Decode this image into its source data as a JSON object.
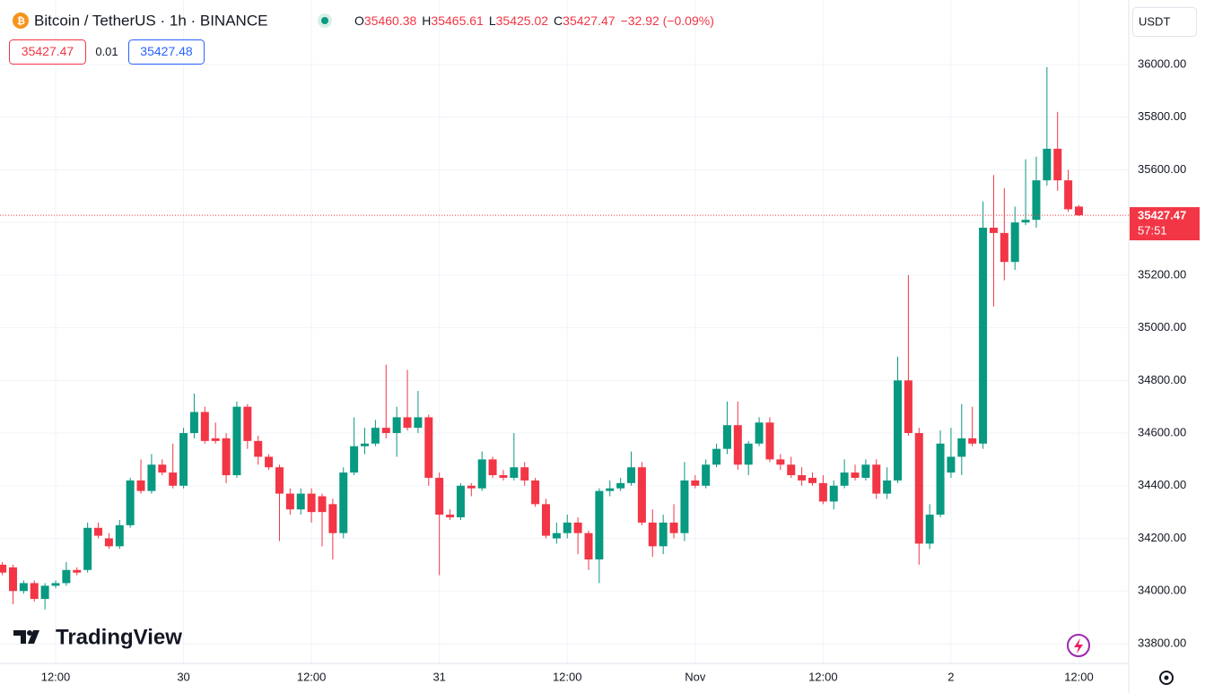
{
  "chart_data": {
    "type": "candlestick",
    "title": "Bitcoin / TetherUS · 1h · BINANCE",
    "ohlc_letters": [
      "O",
      "H",
      "L",
      "C"
    ],
    "change_label": "−32.92 (−0.09%)",
    "bid": "35427.47",
    "spread": "0.01",
    "ask": "35427.48",
    "currency": "USDT",
    "countdown": "57:51",
    "brand": "TradingView",
    "up_color": "#089981",
    "down_color": "#f23645",
    "grid": true,
    "ylim": [
      33725,
      36245
    ],
    "yticks": [
      {
        "value": 33800,
        "label": "33800.00"
      },
      {
        "value": 34000,
        "label": "34000.00"
      },
      {
        "value": 34200,
        "label": "34200.00"
      },
      {
        "value": 34400,
        "label": "34400.00"
      },
      {
        "value": 34600,
        "label": "34600.00"
      },
      {
        "value": 34800,
        "label": "34800.00"
      },
      {
        "value": 35000,
        "label": "35000.00"
      },
      {
        "value": 35200,
        "label": "35200.00"
      },
      {
        "value": 35400,
        "label": "35400.00"
      },
      {
        "value": 35600,
        "label": "35600.00"
      },
      {
        "value": 35800,
        "label": "35800.00"
      },
      {
        "value": 36000,
        "label": "36000.00"
      }
    ],
    "categories": [
      null,
      null,
      null,
      null,
      null,
      "12:00",
      null,
      null,
      null,
      null,
      null,
      null,
      null,
      null,
      null,
      null,
      null,
      "30",
      null,
      null,
      null,
      null,
      null,
      null,
      null,
      null,
      null,
      null,
      null,
      "12:00",
      null,
      null,
      null,
      null,
      null,
      null,
      null,
      null,
      null,
      null,
      null,
      "31",
      null,
      null,
      null,
      null,
      null,
      null,
      null,
      null,
      null,
      null,
      null,
      "12:00",
      null,
      null,
      null,
      null,
      null,
      null,
      null,
      null,
      null,
      null,
      null,
      "Nov",
      null,
      null,
      null,
      null,
      null,
      null,
      null,
      null,
      null,
      null,
      null,
      "12:00",
      null,
      null,
      null,
      null,
      null,
      null,
      null,
      null,
      null,
      null,
      null,
      "2",
      null,
      null,
      null,
      null,
      null,
      null,
      null,
      null,
      null,
      null,
      null,
      "12:00"
    ],
    "ohlc": [
      [
        34100,
        34110,
        34060,
        34070
      ],
      [
        34090,
        34100,
        33950,
        34000
      ],
      [
        34000,
        34040,
        33990,
        34030
      ],
      [
        34030,
        34040,
        33960,
        33970
      ],
      [
        33970,
        34030,
        33930,
        34020
      ],
      [
        34020,
        34040,
        34010,
        34030
      ],
      [
        34030,
        34110,
        34020,
        34080
      ],
      [
        34080,
        34090,
        34060,
        34070
      ],
      [
        34080,
        34260,
        34070,
        34240
      ],
      [
        34240,
        34260,
        34200,
        34210
      ],
      [
        34200,
        34220,
        34160,
        34170
      ],
      [
        34170,
        34270,
        34160,
        34250
      ],
      [
        34250,
        34430,
        34240,
        34420
      ],
      [
        34420,
        34500,
        34370,
        34380
      ],
      [
        34380,
        34520,
        34370,
        34480
      ],
      [
        34480,
        34500,
        34440,
        34450
      ],
      [
        34450,
        34560,
        34390,
        34400
      ],
      [
        34400,
        34620,
        34390,
        34600
      ],
      [
        34600,
        34750,
        34580,
        34680
      ],
      [
        34680,
        34700,
        34560,
        34570
      ],
      [
        34580,
        34640,
        34560,
        34570
      ],
      [
        34580,
        34600,
        34410,
        34440
      ],
      [
        34440,
        34720,
        34430,
        34700
      ],
      [
        34700,
        34710,
        34540,
        34570
      ],
      [
        34570,
        34590,
        34480,
        34510
      ],
      [
        34510,
        34520,
        34460,
        34470
      ],
      [
        34470,
        34480,
        34190,
        34370
      ],
      [
        34370,
        34390,
        34290,
        34310
      ],
      [
        34310,
        34390,
        34290,
        34370
      ],
      [
        34370,
        34390,
        34260,
        34300
      ],
      [
        34360,
        34370,
        34170,
        34300
      ],
      [
        34330,
        34350,
        34120,
        34220
      ],
      [
        34220,
        34470,
        34200,
        34450
      ],
      [
        34450,
        34660,
        34440,
        34550
      ],
      [
        34550,
        34620,
        34520,
        34560
      ],
      [
        34560,
        34650,
        34550,
        34620
      ],
      [
        34620,
        34860,
        34580,
        34600
      ],
      [
        34600,
        34700,
        34510,
        34660
      ],
      [
        34660,
        34840,
        34610,
        34620
      ],
      [
        34620,
        34760,
        34600,
        34660
      ],
      [
        34660,
        34670,
        34400,
        34430
      ],
      [
        34430,
        34450,
        34060,
        34290
      ],
      [
        34290,
        34310,
        34270,
        34280
      ],
      [
        34280,
        34410,
        34270,
        34400
      ],
      [
        34400,
        34410,
        34360,
        34390
      ],
      [
        34390,
        34530,
        34380,
        34500
      ],
      [
        34500,
        34510,
        34430,
        34440
      ],
      [
        34440,
        34460,
        34420,
        34430
      ],
      [
        34430,
        34600,
        34420,
        34470
      ],
      [
        34470,
        34490,
        34400,
        34420
      ],
      [
        34420,
        34430,
        34320,
        34330
      ],
      [
        34330,
        34350,
        34200,
        34210
      ],
      [
        34200,
        34260,
        34180,
        34220
      ],
      [
        34220,
        34290,
        34200,
        34260
      ],
      [
        34260,
        34280,
        34140,
        34220
      ],
      [
        34220,
        34230,
        34080,
        34120
      ],
      [
        34120,
        34390,
        34030,
        34380
      ],
      [
        34380,
        34420,
        34360,
        34390
      ],
      [
        34390,
        34430,
        34380,
        34410
      ],
      [
        34410,
        34530,
        34400,
        34470
      ],
      [
        34470,
        34490,
        34250,
        34260
      ],
      [
        34260,
        34310,
        34130,
        34170
      ],
      [
        34170,
        34290,
        34140,
        34260
      ],
      [
        34260,
        34330,
        34200,
        34220
      ],
      [
        34220,
        34490,
        34190,
        34420
      ],
      [
        34420,
        34440,
        34390,
        34400
      ],
      [
        34400,
        34500,
        34390,
        34480
      ],
      [
        34480,
        34560,
        34470,
        34540
      ],
      [
        34540,
        34720,
        34520,
        34630
      ],
      [
        34630,
        34720,
        34460,
        34480
      ],
      [
        34480,
        34570,
        34440,
        34560
      ],
      [
        34560,
        34660,
        34550,
        34640
      ],
      [
        34640,
        34660,
        34490,
        34500
      ],
      [
        34500,
        34520,
        34460,
        34480
      ],
      [
        34480,
        34510,
        34430,
        34440
      ],
      [
        34440,
        34470,
        34400,
        34420
      ],
      [
        34430,
        34450,
        34400,
        34410
      ],
      [
        34410,
        34440,
        34330,
        34340
      ],
      [
        34340,
        34420,
        34310,
        34400
      ],
      [
        34400,
        34500,
        34390,
        34450
      ],
      [
        34450,
        34480,
        34420,
        34430
      ],
      [
        34430,
        34500,
        34420,
        34480
      ],
      [
        34480,
        34500,
        34350,
        34370
      ],
      [
        34370,
        34470,
        34350,
        34420
      ],
      [
        34420,
        34890,
        34410,
        34800
      ],
      [
        34800,
        35200,
        34590,
        34600
      ],
      [
        34600,
        34620,
        34100,
        34180
      ],
      [
        34180,
        34330,
        34160,
        34290
      ],
      [
        34290,
        34610,
        34280,
        34560
      ],
      [
        34450,
        34620,
        34430,
        34510
      ],
      [
        34510,
        34710,
        34440,
        34580
      ],
      [
        34580,
        34700,
        34550,
        34560
      ],
      [
        34560,
        35480,
        34540,
        35380
      ],
      [
        35380,
        35580,
        35080,
        35360
      ],
      [
        35360,
        35530,
        35180,
        35250
      ],
      [
        35250,
        35460,
        35220,
        35400
      ],
      [
        35400,
        35640,
        35390,
        35410
      ],
      [
        35410,
        35650,
        35380,
        35560
      ],
      [
        35560,
        35990,
        35540,
        35680
      ],
      [
        35680,
        35820,
        35520,
        35560
      ],
      [
        35560,
        35600,
        35440,
        35450
      ],
      [
        35460.38,
        35465.61,
        35425.02,
        35427.47
      ]
    ]
  }
}
